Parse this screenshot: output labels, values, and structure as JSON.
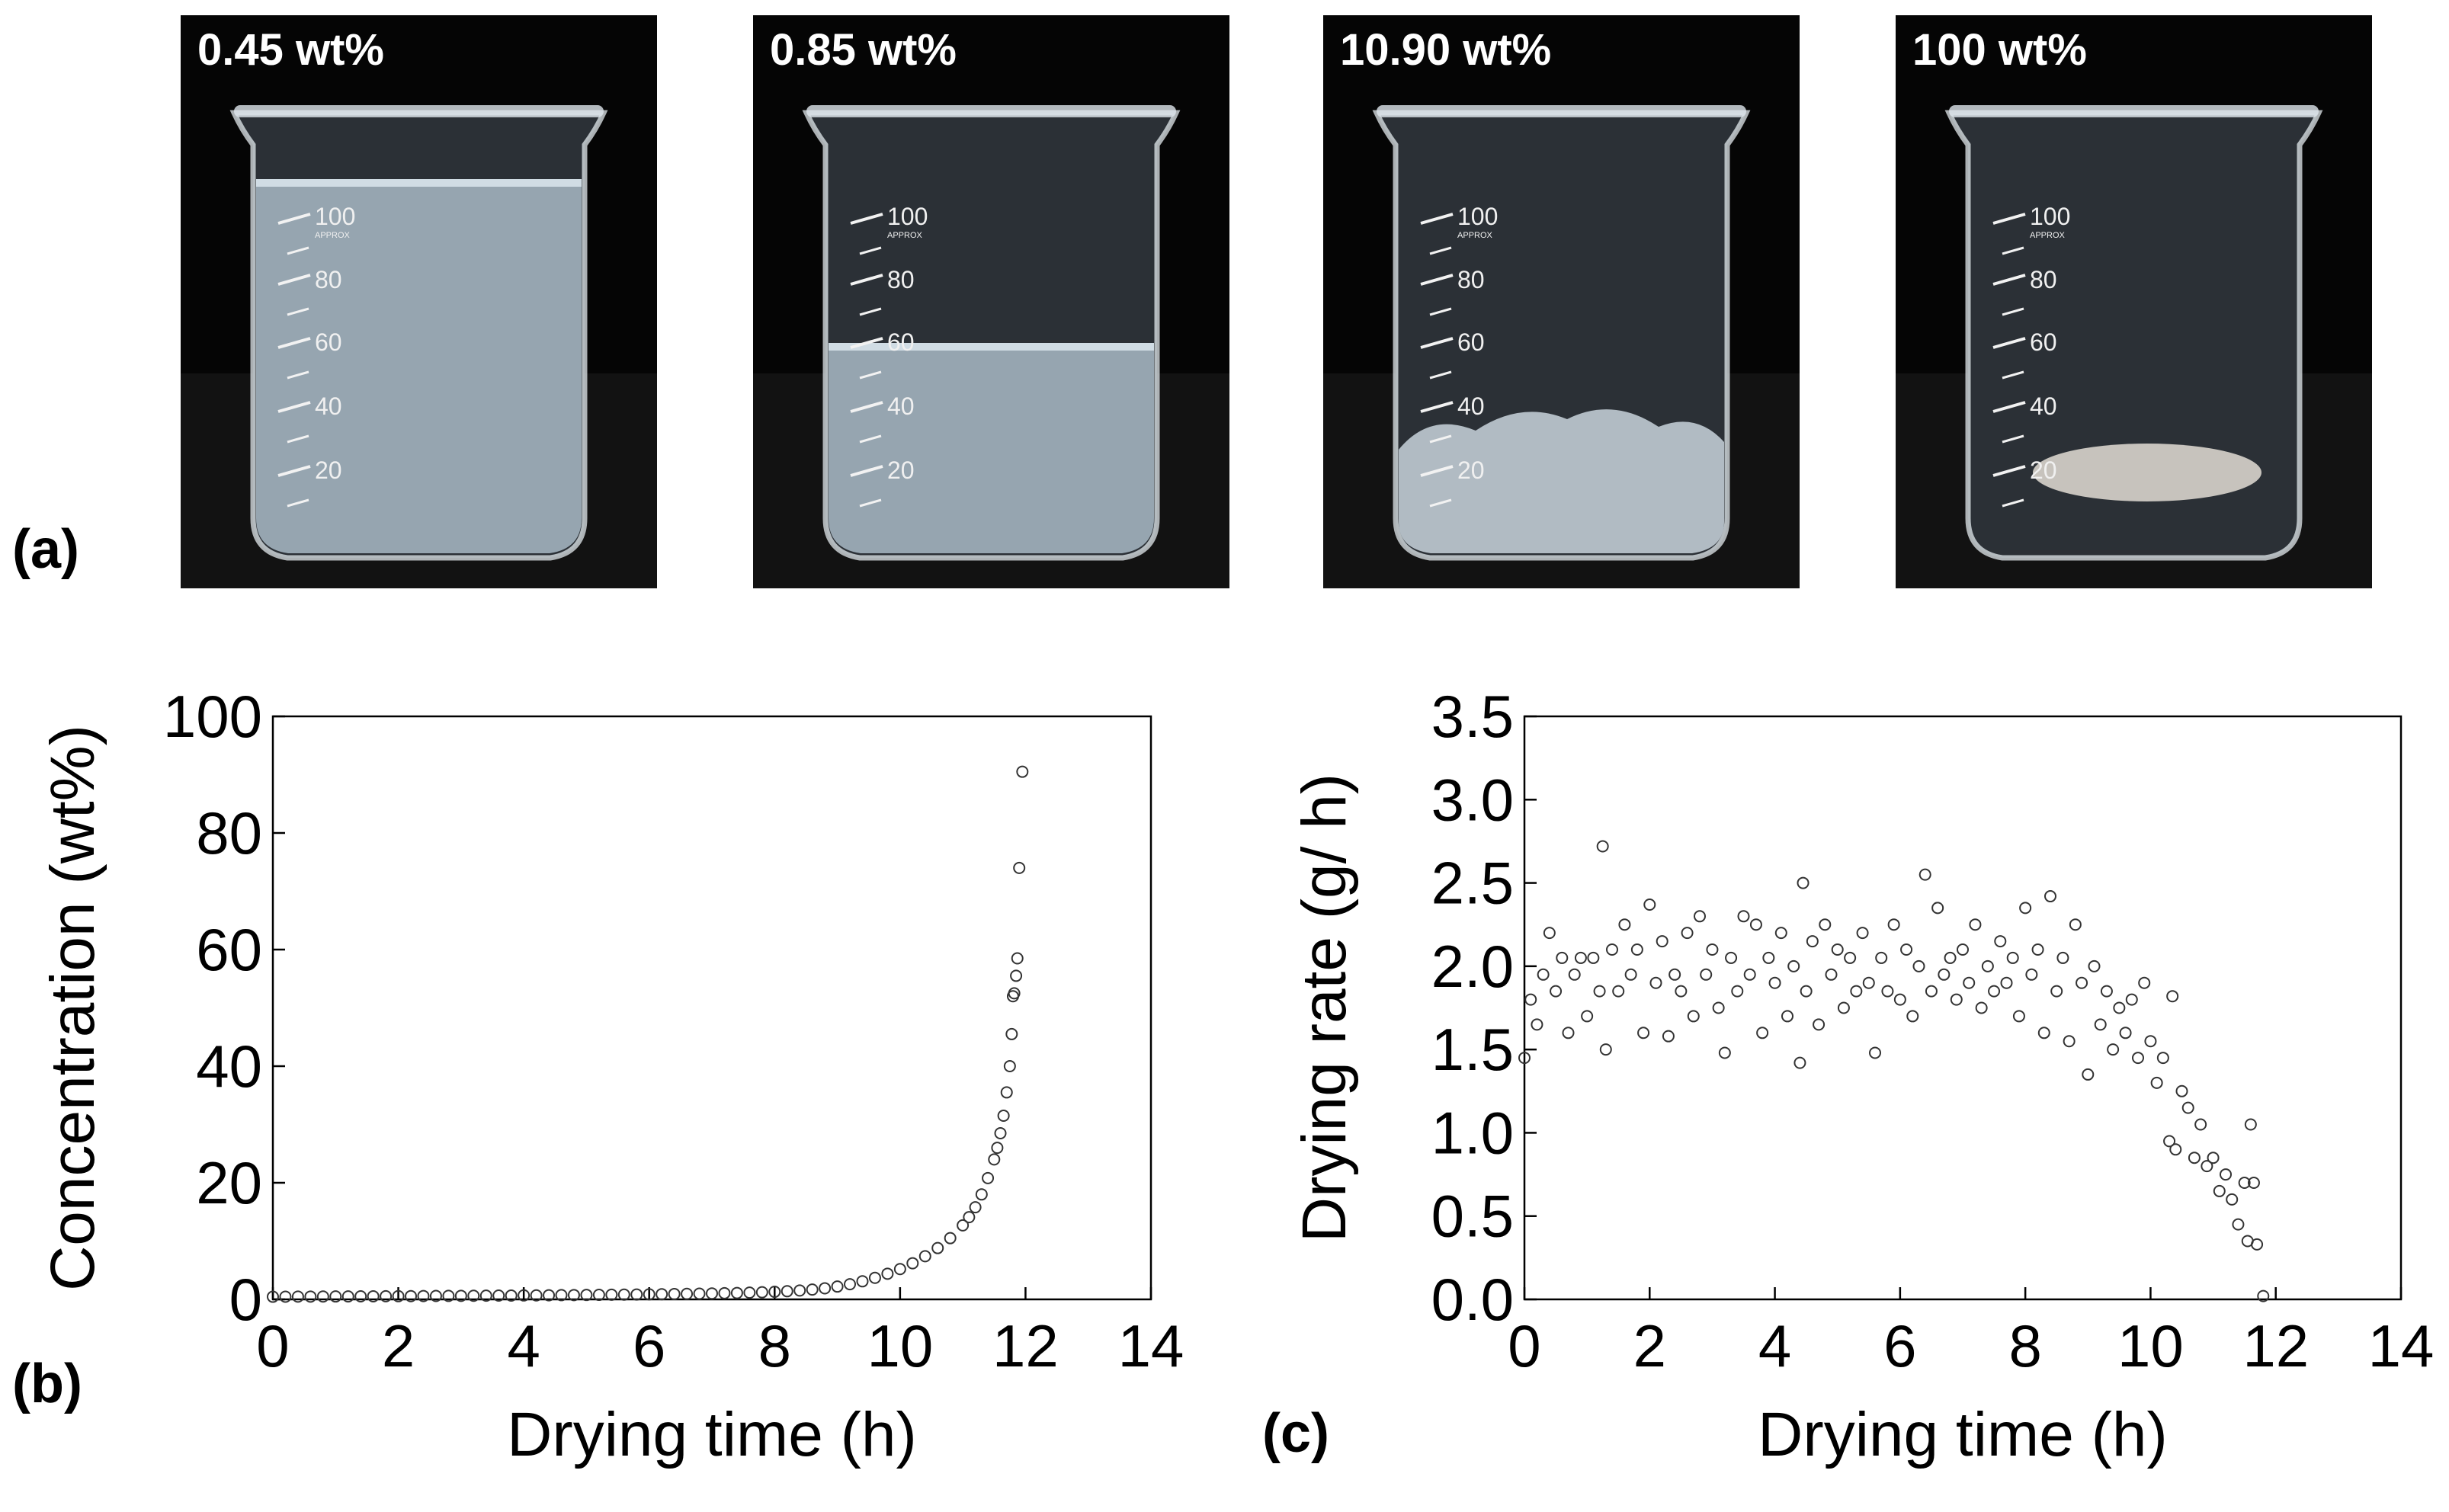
{
  "panel_labels": {
    "a": "(a)",
    "b": "(b)",
    "c": "(c)"
  },
  "photos": [
    {
      "label": "0.45 wt%",
      "content": "liquid"
    },
    {
      "label": "0.85 wt%",
      "content": "liquid"
    },
    {
      "label": "10.90 wt%",
      "content": "gel"
    },
    {
      "label": "100 wt%",
      "content": "film"
    }
  ],
  "beaker_graduations": [
    "100",
    "APPROX",
    "80",
    "60",
    "40",
    "20"
  ],
  "colors": {
    "marker": "#333333",
    "axis": "#000000",
    "photo_bg": "#050505",
    "liquid": "#aebfcc",
    "glass": "#e3e9ee"
  },
  "chart_data": [
    {
      "id": "b",
      "type": "scatter",
      "title": "",
      "xlabel": "Drying time (h)",
      "ylabel": "Concentration (wt%)",
      "xlim": [
        0,
        14
      ],
      "ylim": [
        0,
        100
      ],
      "xticks": [
        "0",
        "2",
        "4",
        "6",
        "8",
        "10",
        "12",
        "14"
      ],
      "yticks": [
        "0",
        "20",
        "40",
        "60",
        "80",
        "100"
      ],
      "grid": false,
      "points": [
        [
          0.0,
          0.45
        ],
        [
          0.2,
          0.46
        ],
        [
          0.4,
          0.47
        ],
        [
          0.6,
          0.48
        ],
        [
          0.8,
          0.49
        ],
        [
          1.0,
          0.5
        ],
        [
          1.2,
          0.51
        ],
        [
          1.4,
          0.52
        ],
        [
          1.6,
          0.53
        ],
        [
          1.8,
          0.54
        ],
        [
          2.0,
          0.55
        ],
        [
          2.2,
          0.56
        ],
        [
          2.4,
          0.58
        ],
        [
          2.6,
          0.59
        ],
        [
          2.8,
          0.6
        ],
        [
          3.0,
          0.61
        ],
        [
          3.2,
          0.62
        ],
        [
          3.4,
          0.64
        ],
        [
          3.6,
          0.65
        ],
        [
          3.8,
          0.66
        ],
        [
          4.0,
          0.68
        ],
        [
          4.2,
          0.69
        ],
        [
          4.4,
          0.71
        ],
        [
          4.6,
          0.73
        ],
        [
          4.8,
          0.74
        ],
        [
          5.0,
          0.76
        ],
        [
          5.2,
          0.78
        ],
        [
          5.4,
          0.8
        ],
        [
          5.6,
          0.82
        ],
        [
          5.8,
          0.84
        ],
        [
          6.0,
          0.87
        ],
        [
          6.2,
          0.89
        ],
        [
          6.4,
          0.92
        ],
        [
          6.6,
          0.95
        ],
        [
          6.8,
          0.98
        ],
        [
          7.0,
          1.02
        ],
        [
          7.2,
          1.06
        ],
        [
          7.4,
          1.1
        ],
        [
          7.6,
          1.16
        ],
        [
          7.8,
          1.22
        ],
        [
          8.0,
          1.3
        ],
        [
          8.2,
          1.4
        ],
        [
          8.4,
          1.52
        ],
        [
          8.6,
          1.68
        ],
        [
          8.8,
          1.9
        ],
        [
          9.0,
          2.2
        ],
        [
          9.2,
          2.6
        ],
        [
          9.4,
          3.1
        ],
        [
          9.6,
          3.7
        ],
        [
          9.8,
          4.4
        ],
        [
          10.0,
          5.2
        ],
        [
          10.2,
          6.2
        ],
        [
          10.4,
          7.4
        ],
        [
          10.6,
          8.8
        ],
        [
          10.8,
          10.5
        ],
        [
          11.0,
          12.7
        ],
        [
          11.1,
          14.1
        ],
        [
          11.2,
          15.8
        ],
        [
          11.3,
          18.0
        ],
        [
          11.4,
          20.8
        ],
        [
          11.5,
          24.0
        ],
        [
          11.55,
          26.0
        ],
        [
          11.6,
          28.5
        ],
        [
          11.65,
          31.5
        ],
        [
          11.7,
          35.5
        ],
        [
          11.75,
          40.0
        ],
        [
          11.78,
          45.5
        ],
        [
          11.8,
          52.0
        ],
        [
          11.82,
          52.5
        ],
        [
          11.85,
          55.5
        ],
        [
          11.87,
          58.5
        ],
        [
          11.9,
          74.0
        ],
        [
          11.95,
          90.5
        ]
      ]
    },
    {
      "id": "c",
      "type": "scatter",
      "title": "",
      "xlabel": "Drying time (h)",
      "ylabel": "Drying rate (g/ h)",
      "xlim": [
        0,
        14
      ],
      "ylim": [
        0,
        3.5
      ],
      "xticks": [
        "0",
        "2",
        "4",
        "6",
        "8",
        "10",
        "12",
        "14"
      ],
      "yticks": [
        "0.0",
        "0.5",
        "1.0",
        "1.5",
        "2.0",
        "2.5",
        "3.0",
        "3.5"
      ],
      "grid": false,
      "points": [
        [
          0.0,
          1.45
        ],
        [
          0.1,
          1.8
        ],
        [
          0.2,
          1.65
        ],
        [
          0.3,
          1.95
        ],
        [
          0.4,
          2.2
        ],
        [
          0.5,
          1.85
        ],
        [
          0.6,
          2.05
        ],
        [
          0.7,
          1.6
        ],
        [
          0.8,
          1.95
        ],
        [
          0.9,
          2.05
        ],
        [
          1.0,
          1.7
        ],
        [
          1.1,
          2.05
        ],
        [
          1.2,
          1.85
        ],
        [
          1.25,
          2.72
        ],
        [
          1.3,
          1.5
        ],
        [
          1.4,
          2.1
        ],
        [
          1.5,
          1.85
        ],
        [
          1.6,
          2.25
        ],
        [
          1.7,
          1.95
        ],
        [
          1.8,
          2.1
        ],
        [
          1.9,
          1.6
        ],
        [
          2.0,
          2.37
        ],
        [
          2.1,
          1.9
        ],
        [
          2.2,
          2.15
        ],
        [
          2.3,
          1.58
        ],
        [
          2.4,
          1.95
        ],
        [
          2.5,
          1.85
        ],
        [
          2.6,
          2.2
        ],
        [
          2.7,
          1.7
        ],
        [
          2.8,
          2.3
        ],
        [
          2.9,
          1.95
        ],
        [
          3.0,
          2.1
        ],
        [
          3.1,
          1.75
        ],
        [
          3.2,
          1.48
        ],
        [
          3.3,
          2.05
        ],
        [
          3.4,
          1.85
        ],
        [
          3.5,
          2.3
        ],
        [
          3.6,
          1.95
        ],
        [
          3.7,
          2.25
        ],
        [
          3.8,
          1.6
        ],
        [
          3.9,
          2.05
        ],
        [
          4.0,
          1.9
        ],
        [
          4.1,
          2.2
        ],
        [
          4.2,
          1.7
        ],
        [
          4.3,
          2.0
        ],
        [
          4.4,
          1.42
        ],
        [
          4.45,
          2.5
        ],
        [
          4.5,
          1.85
        ],
        [
          4.6,
          2.15
        ],
        [
          4.7,
          1.65
        ],
        [
          4.8,
          2.25
        ],
        [
          4.9,
          1.95
        ],
        [
          5.0,
          2.1
        ],
        [
          5.1,
          1.75
        ],
        [
          5.2,
          2.05
        ],
        [
          5.3,
          1.85
        ],
        [
          5.4,
          2.2
        ],
        [
          5.5,
          1.9
        ],
        [
          5.6,
          1.48
        ],
        [
          5.7,
          2.05
        ],
        [
          5.8,
          1.85
        ],
        [
          5.9,
          2.25
        ],
        [
          6.0,
          1.8
        ],
        [
          6.1,
          2.1
        ],
        [
          6.2,
          1.7
        ],
        [
          6.3,
          2.0
        ],
        [
          6.4,
          2.55
        ],
        [
          6.5,
          1.85
        ],
        [
          6.6,
          2.35
        ],
        [
          6.7,
          1.95
        ],
        [
          6.8,
          2.05
        ],
        [
          6.9,
          1.8
        ],
        [
          7.0,
          2.1
        ],
        [
          7.1,
          1.9
        ],
        [
          7.2,
          2.25
        ],
        [
          7.3,
          1.75
        ],
        [
          7.4,
          2.0
        ],
        [
          7.5,
          1.85
        ],
        [
          7.6,
          2.15
        ],
        [
          7.7,
          1.9
        ],
        [
          7.8,
          2.05
        ],
        [
          7.9,
          1.7
        ],
        [
          8.0,
          2.35
        ],
        [
          8.1,
          1.95
        ],
        [
          8.2,
          2.1
        ],
        [
          8.3,
          1.6
        ],
        [
          8.4,
          2.42
        ],
        [
          8.5,
          1.85
        ],
        [
          8.6,
          2.05
        ],
        [
          8.7,
          1.55
        ],
        [
          8.8,
          2.25
        ],
        [
          8.9,
          1.9
        ],
        [
          9.0,
          1.35
        ],
        [
          9.1,
          2.0
        ],
        [
          9.2,
          1.65
        ],
        [
          9.3,
          1.85
        ],
        [
          9.4,
          1.5
        ],
        [
          9.5,
          1.75
        ],
        [
          9.6,
          1.6
        ],
        [
          9.7,
          1.8
        ],
        [
          9.8,
          1.45
        ],
        [
          9.9,
          1.9
        ],
        [
          10.0,
          1.55
        ],
        [
          10.1,
          1.3
        ],
        [
          10.2,
          1.45
        ],
        [
          10.3,
          0.95
        ],
        [
          10.35,
          1.82
        ],
        [
          10.4,
          0.9
        ],
        [
          10.5,
          1.25
        ],
        [
          10.6,
          1.15
        ],
        [
          10.7,
          0.85
        ],
        [
          10.8,
          1.05
        ],
        [
          10.9,
          0.8
        ],
        [
          11.0,
          0.85
        ],
        [
          11.1,
          0.65
        ],
        [
          11.2,
          0.75
        ],
        [
          11.3,
          0.6
        ],
        [
          11.4,
          0.45
        ],
        [
          11.5,
          0.7
        ],
        [
          11.55,
          0.35
        ],
        [
          11.6,
          1.05
        ],
        [
          11.65,
          0.7
        ],
        [
          11.7,
          0.33
        ],
        [
          11.8,
          0.02
        ]
      ]
    }
  ]
}
